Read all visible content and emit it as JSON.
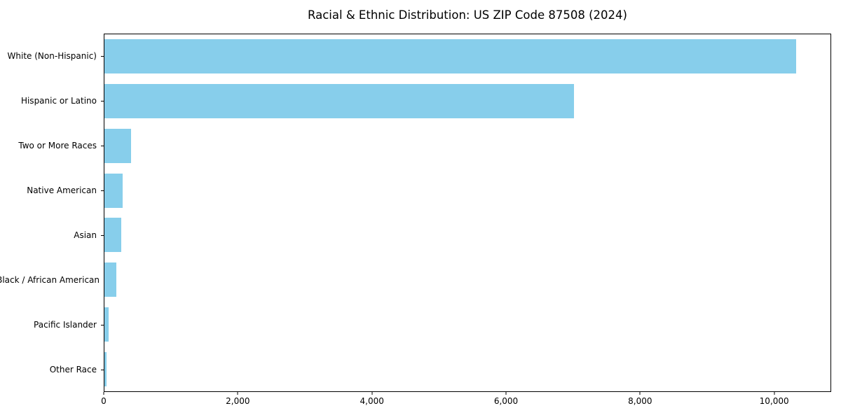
{
  "chart_data": {
    "type": "bar",
    "orientation": "horizontal",
    "title": "Racial & Ethnic Distribution: US ZIP Code 87508 (2024)",
    "categories": [
      "White (Non-Hispanic)",
      "Hispanic or Latino",
      "Two or More Races",
      "Native American",
      "Asian",
      "Black / African American",
      "Pacific Islander",
      "Other Race"
    ],
    "values": [
      10335,
      7015,
      395,
      275,
      255,
      175,
      65,
      30
    ],
    "xlabel": "",
    "ylabel": "",
    "xlim": [
      0,
      10850
    ],
    "x_ticks": [
      0,
      2000,
      4000,
      6000,
      8000,
      10000
    ],
    "x_tick_labels": [
      "0",
      "2,000",
      "4,000",
      "6,000",
      "8,000",
      "10,000"
    ],
    "grid": false,
    "legend": "none",
    "bar_color": "#87CEEB",
    "frame_color": "#000000",
    "background_color": "#ffffff",
    "text_color": "#000000"
  }
}
